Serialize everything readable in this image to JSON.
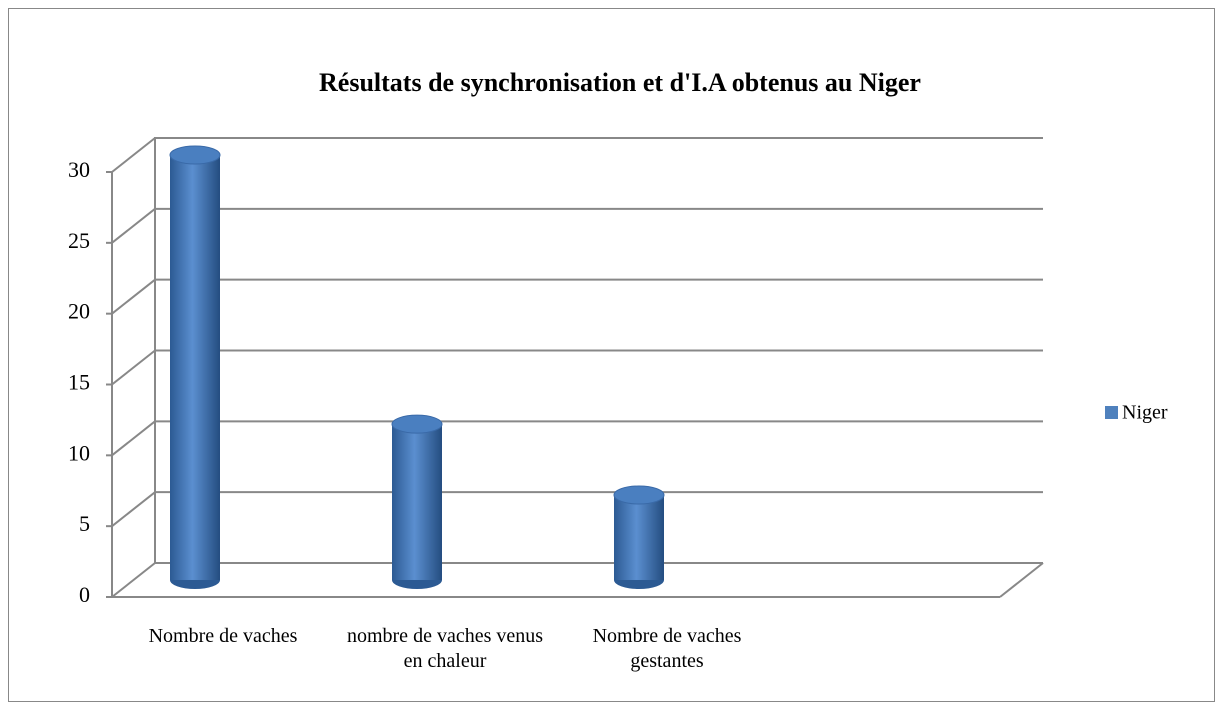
{
  "chart_data": {
    "type": "bar",
    "title": "Résultats de synchronisation et d'I.A obtenus au Niger",
    "categories": [
      "Nombre de vaches",
      "nombre de vaches venus en chaleur",
      "Nombre de vaches gestantes",
      null
    ],
    "series": [
      {
        "name": "Niger",
        "color": "#4f81bd",
        "values": [
          30,
          11,
          6,
          null
        ]
      }
    ],
    "ylim": [
      0,
      30
    ],
    "yticks": [
      0,
      5,
      10,
      15,
      20,
      25,
      30
    ],
    "grid": true,
    "legend": "right"
  }
}
